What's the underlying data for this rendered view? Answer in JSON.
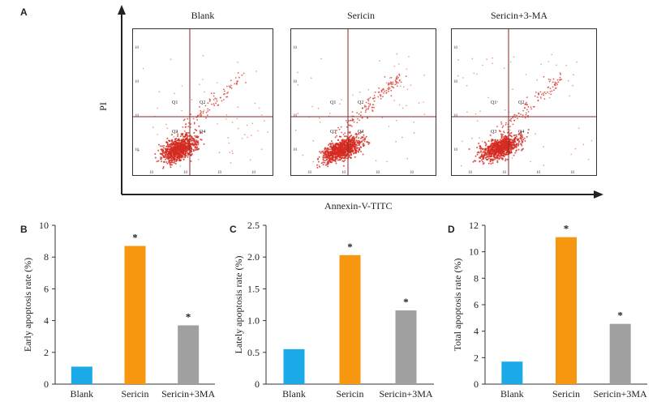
{
  "figure": {
    "panel_a": {
      "letter": "A",
      "y_axis_label": "PI",
      "x_axis_label": "Annexin-V-TITC",
      "quadrant_labels": [
        "Q1",
        "Q2",
        "Q3",
        "Q4"
      ],
      "tick_label": "10",
      "plots": [
        {
          "title": "Blank"
        },
        {
          "title": "Sericin"
        },
        {
          "title": "Sericin+3-MA"
        }
      ],
      "colors": {
        "dots": "#d42a20",
        "gate": "#8a2a2a"
      }
    },
    "panel_b": {
      "letter": "B"
    },
    "panel_c": {
      "letter": "C"
    },
    "panel_d": {
      "letter": "D"
    }
  },
  "chart_data": [
    {
      "type": "bar",
      "categories": [
        "Blank",
        "Sericin",
        "Sericin+3MA"
      ],
      "values": [
        1.1,
        8.7,
        3.7
      ],
      "ylabel": "Early apoptosis rate (%)",
      "ylim": [
        0,
        10
      ],
      "yticks": [
        0,
        2,
        4,
        6,
        8,
        10
      ],
      "ytick_labels": [
        "0",
        "2",
        "4",
        "6",
        "8",
        "10"
      ],
      "significance": [
        "",
        "*",
        "*"
      ],
      "colors": [
        "#1ca9e8",
        "#f7960f",
        "#a0a0a0"
      ]
    },
    {
      "type": "bar",
      "categories": [
        "Blank",
        "Sericin",
        "Sericin+3MA"
      ],
      "values": [
        0.55,
        2.03,
        1.16
      ],
      "ylabel": "Lately apoptosis rate (%)",
      "ylim": [
        0,
        2.5
      ],
      "yticks": [
        0,
        0.5,
        1.0,
        1.5,
        2.0,
        2.5
      ],
      "ytick_labels": [
        "0",
        "0.5",
        "1.0",
        "1.5",
        "2.0",
        "2.5"
      ],
      "significance": [
        "",
        "*",
        "*"
      ],
      "colors": [
        "#1ca9e8",
        "#f7960f",
        "#a0a0a0"
      ]
    },
    {
      "type": "bar",
      "categories": [
        "Blank",
        "Sericin",
        "Sericin+3MA"
      ],
      "values": [
        1.7,
        11.1,
        4.55
      ],
      "ylabel": "Total apoptosis rate (%)",
      "ylim": [
        0,
        12
      ],
      "yticks": [
        0,
        2,
        4,
        6,
        8,
        10,
        12
      ],
      "ytick_labels": [
        "0",
        "2",
        "4",
        "6",
        "8",
        "10",
        "12"
      ],
      "significance": [
        "",
        "*",
        "*"
      ],
      "colors": [
        "#1ca9e8",
        "#f7960f",
        "#a0a0a0"
      ]
    }
  ]
}
